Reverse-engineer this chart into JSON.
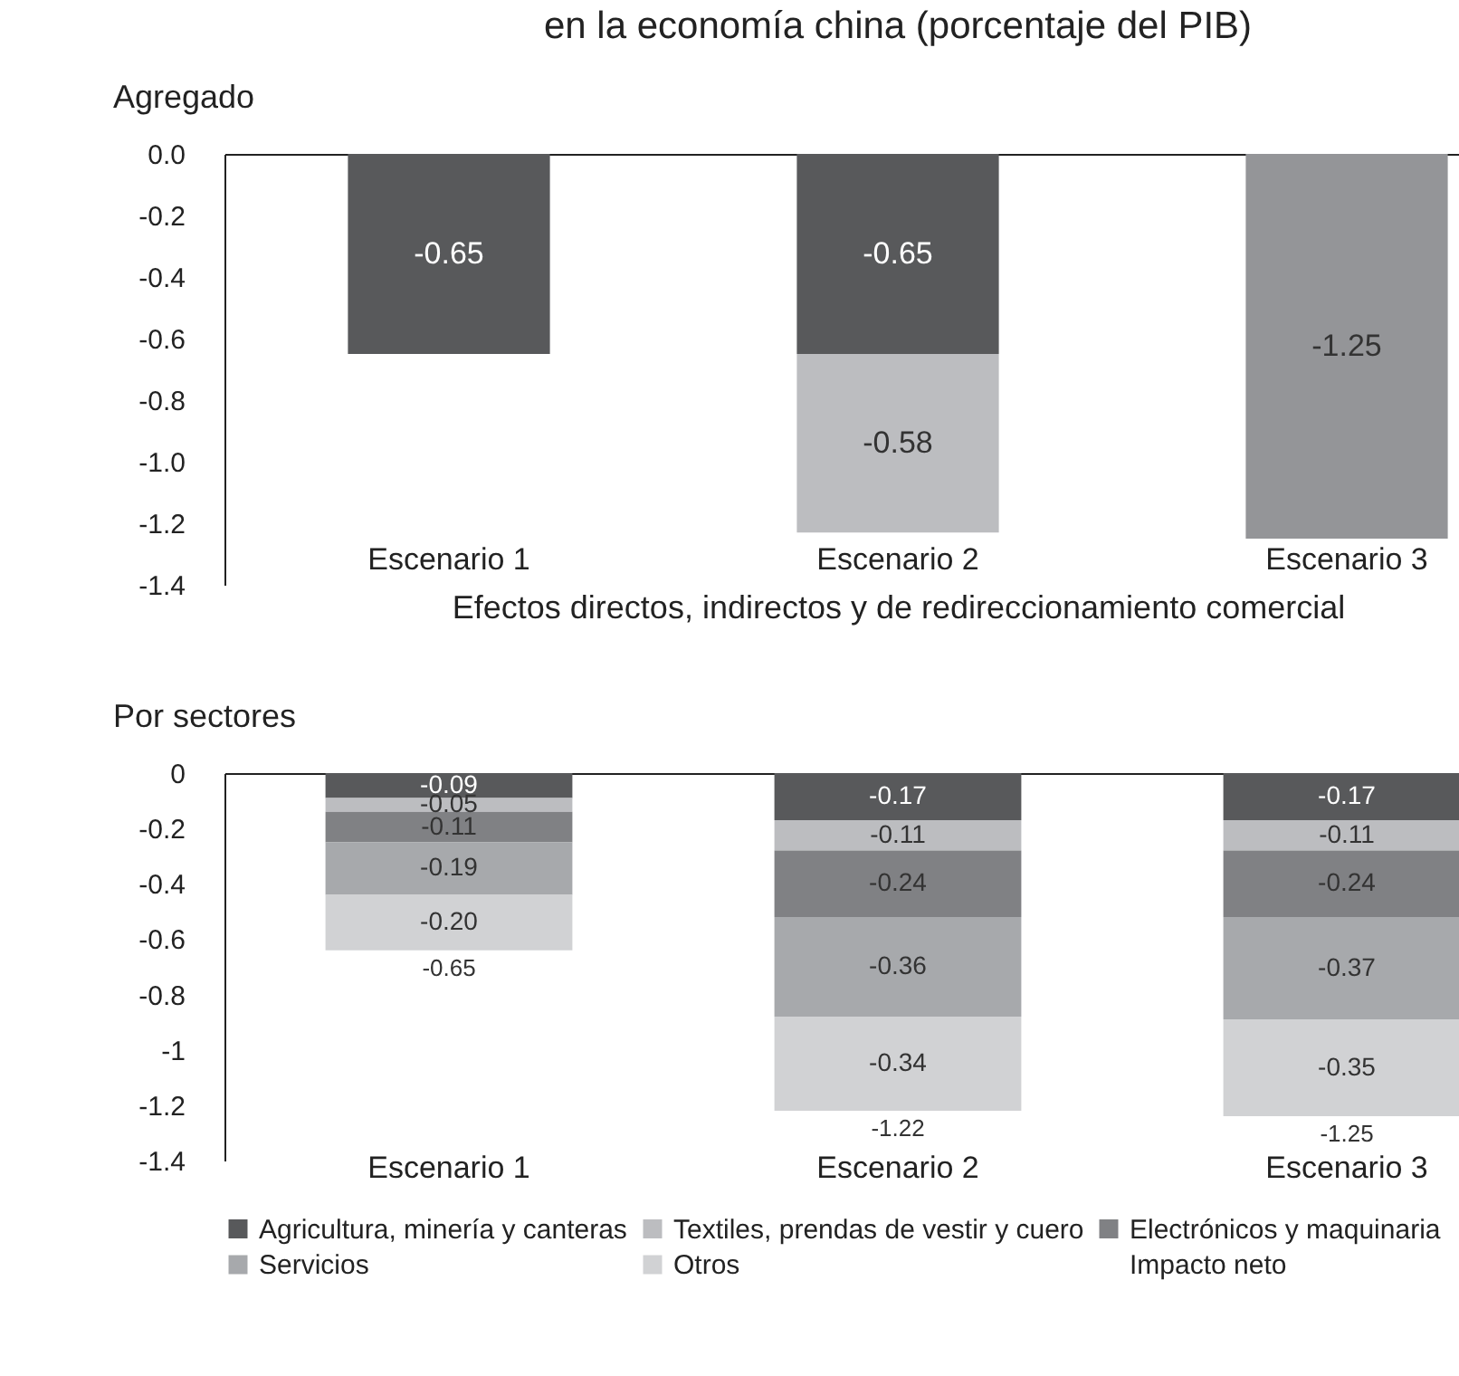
{
  "chart_data": [
    {
      "type": "bar",
      "title": "en la economía china (porcentaje del PIB)",
      "ylabel": "Agregado",
      "xlabel": "Efectos directos, indirectos y de redireccionamiento comercial",
      "categories": [
        "Escenario 1",
        "Escenario 2",
        "Escenario 3"
      ],
      "stacked": true,
      "ylim": [
        -1.4,
        0
      ],
      "yticks": [
        {
          "value": 0,
          "label": "0.0"
        },
        -0.2,
        -0.4,
        -0.6,
        -0.8,
        {
          "value": -1,
          "label": "-1.0"
        },
        -1.2,
        -1.4
      ],
      "series": [
        {
          "color": "#58595b",
          "values": [
            -0.65,
            -0.65,
            null
          ],
          "value_labels": [
            "-0.65",
            "-0.65",
            null
          ]
        },
        {
          "color": "#bcbdc0",
          "values": [
            null,
            -0.58,
            null
          ],
          "value_labels": [
            null,
            "-0.58",
            null
          ]
        },
        {
          "color": "#949598",
          "values": [
            null,
            null,
            -1.25
          ],
          "value_labels": [
            null,
            null,
            "-1.25"
          ]
        }
      ]
    },
    {
      "type": "bar",
      "ylabel": "Por sectores",
      "categories": [
        "Escenario 1",
        "Escenario 2",
        "Escenario 3"
      ],
      "stacked": true,
      "ylim": [
        -1.4,
        0
      ],
      "yticks": [
        0,
        -0.2,
        -0.4,
        -0.6,
        -0.8,
        -1,
        -1.2,
        -1.4
      ],
      "legend": "bottom",
      "annotations": [
        "Impacto neto"
      ],
      "totals": [
        "-0.65",
        "-1.22",
        "-1.25"
      ],
      "series": [
        {
          "name": "Agricultura, minería y canteras",
          "color": "#58595b",
          "values": [
            -0.09,
            -0.17,
            -0.17
          ],
          "value_labels": [
            "-0.09",
            "-0.17",
            "-0.17"
          ]
        },
        {
          "name": "Textiles, prendas de vestir y cuero",
          "color": "#bcbdc0",
          "values": [
            -0.05,
            -0.11,
            -0.11
          ],
          "value_labels": [
            "-0.05",
            "-0.11",
            "-0.11"
          ]
        },
        {
          "name": "Electrónicos y maquinaria",
          "color": "#808184",
          "values": [
            -0.11,
            -0.24,
            -0.24
          ],
          "value_labels": [
            "-0.11",
            "-0.24",
            "-0.24"
          ]
        },
        {
          "name": "Servicios",
          "color": "#a7a9ac",
          "values": [
            -0.19,
            -0.36,
            -0.37
          ],
          "value_labels": [
            "-0.19",
            "-0.36",
            "-0.37"
          ]
        },
        {
          "name": "Otros",
          "color": "#d1d2d4",
          "values": [
            -0.2,
            -0.34,
            -0.35
          ],
          "value_labels": [
            "-0.20",
            "-0.34",
            "-0.35"
          ]
        }
      ]
    }
  ]
}
